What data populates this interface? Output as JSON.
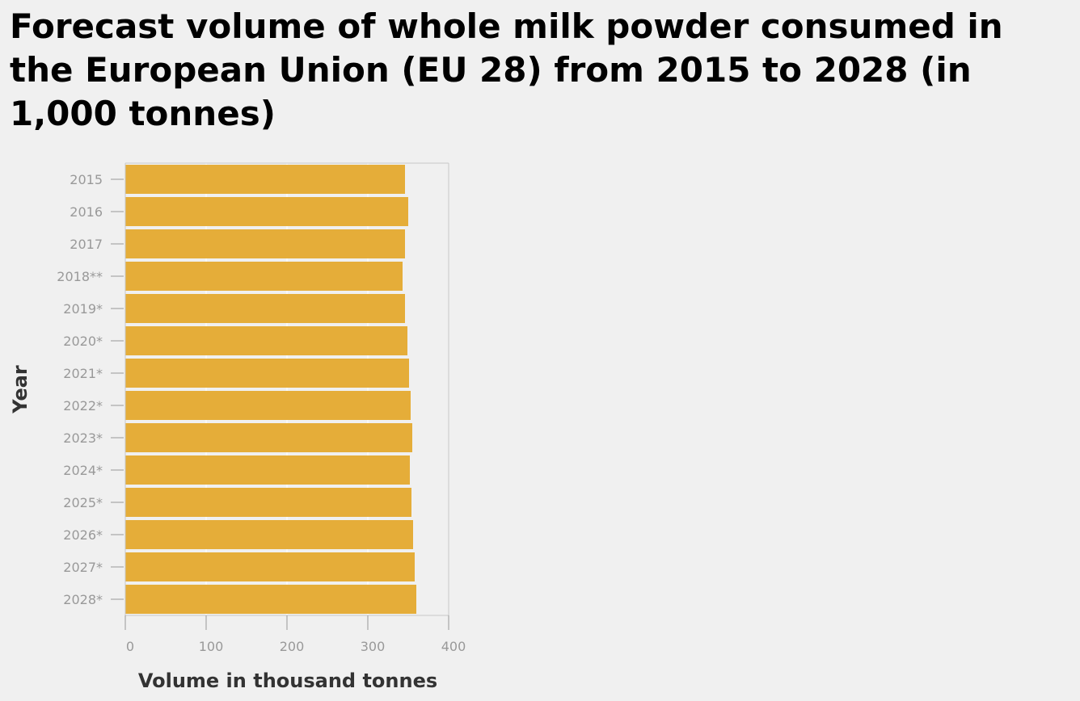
{
  "chart_data": {
    "type": "bar",
    "orientation": "horizontal",
    "title": "Forecast volume of whole milk powder consumed in the European Union (EU 28) from 2015 to 2028 (in 1,000 tonnes)",
    "xlabel": "Volume in thousand tonnes",
    "ylabel": "Year",
    "categories": [
      "2015",
      "2016",
      "2017",
      "2018**",
      "2019*",
      "2020*",
      "2021*",
      "2022*",
      "2023*",
      "2024*",
      "2025*",
      "2026*",
      "2027*",
      "2028*"
    ],
    "values": [
      346,
      350,
      346,
      343,
      346,
      349,
      351,
      353,
      355,
      352,
      354,
      356,
      358,
      360
    ],
    "xlim": [
      0,
      400
    ],
    "xticks": [
      "0",
      "100",
      "200",
      "300",
      "400"
    ],
    "grid": true,
    "colors": {
      "bar": "#e5ad39",
      "grid": "#ffffff",
      "axis": "#c8c8c8",
      "background": "#f0f0f0"
    }
  }
}
